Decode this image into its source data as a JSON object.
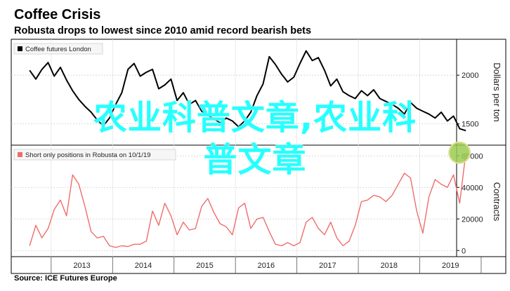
{
  "title": "Coffee Crisis",
  "subtitle": "Robusta drops to lowest since 2010 amid record bearish bets",
  "source": "Source: ICE Futures Europe",
  "overlay_text": {
    "line1": "农业科普文章,农业科",
    "line2": "普文章"
  },
  "colors": {
    "top_series": "#000000",
    "bottom_series": "#f06c6c",
    "overlay": "#27ffff",
    "highlight_fill": "#9acd52",
    "highlight_stroke": "#e0e09a"
  },
  "chart_data": [
    {
      "type": "line",
      "series": [
        {
          "name": "Coffee futures London",
          "x": [
            2012.65,
            2012.75,
            2012.85,
            2012.95,
            2013.05,
            2013.15,
            2013.25,
            2013.35,
            2013.45,
            2013.55,
            2013.65,
            2013.75,
            2013.85,
            2013.95,
            2014.05,
            2014.15,
            2014.25,
            2014.35,
            2014.45,
            2014.55,
            2014.65,
            2014.75,
            2014.85,
            2014.95,
            2015.05,
            2015.15,
            2015.25,
            2015.35,
            2015.45,
            2015.55,
            2015.65,
            2015.75,
            2015.85,
            2015.95,
            2016.05,
            2016.15,
            2016.25,
            2016.35,
            2016.45,
            2016.55,
            2016.65,
            2016.75,
            2016.85,
            2016.95,
            2017.05,
            2017.15,
            2017.25,
            2017.35,
            2017.45,
            2017.55,
            2017.65,
            2017.75,
            2017.85,
            2017.95,
            2018.05,
            2018.15,
            2018.25,
            2018.35,
            2018.45,
            2018.55,
            2018.65,
            2018.75,
            2018.85,
            2018.95,
            2019.05,
            2019.15,
            2019.25,
            2019.35,
            2019.45,
            2019.55,
            2019.65,
            2019.75
          ],
          "values": [
            2050,
            1960,
            2060,
            2130,
            1990,
            2080,
            1950,
            1840,
            1750,
            1680,
            1620,
            1540,
            1480,
            1560,
            1700,
            1820,
            2060,
            2120,
            1990,
            2030,
            2060,
            1860,
            1900,
            1960,
            1740,
            1820,
            1700,
            1740,
            1630,
            1590,
            1550,
            1510,
            1560,
            1530,
            1470,
            1530,
            1620,
            1790,
            1910,
            2190,
            2110,
            2010,
            1930,
            1980,
            2120,
            2250,
            2150,
            2180,
            2050,
            1890,
            1960,
            1830,
            1790,
            1760,
            1840,
            1790,
            1850,
            1760,
            1730,
            1700,
            1660,
            1600,
            1720,
            1660,
            1630,
            1600,
            1560,
            1620,
            1530,
            1580,
            1450,
            1430
          ]
        }
      ],
      "xlim": [
        2012.35,
        2019.6
      ],
      "ylim": [
        1310,
        2340
      ],
      "y_ticks": [
        1500,
        2000
      ],
      "y_tick_labels": [
        "1500",
        "2000"
      ],
      "ylabel": "Dollars per ton",
      "legend": "top-left"
    },
    {
      "type": "line",
      "series": [
        {
          "name": "Short only positions in Robusta on 10/1/19",
          "x": [
            2012.65,
            2012.75,
            2012.85,
            2012.95,
            2013.05,
            2013.15,
            2013.25,
            2013.35,
            2013.45,
            2013.55,
            2013.65,
            2013.75,
            2013.85,
            2013.95,
            2014.05,
            2014.15,
            2014.25,
            2014.35,
            2014.45,
            2014.55,
            2014.65,
            2014.75,
            2014.85,
            2014.95,
            2015.05,
            2015.15,
            2015.25,
            2015.35,
            2015.45,
            2015.55,
            2015.65,
            2015.75,
            2015.85,
            2015.95,
            2016.05,
            2016.15,
            2016.25,
            2016.35,
            2016.45,
            2016.55,
            2016.65,
            2016.75,
            2016.85,
            2016.95,
            2017.05,
            2017.15,
            2017.25,
            2017.35,
            2017.45,
            2017.55,
            2017.65,
            2017.75,
            2017.85,
            2017.95,
            2018.05,
            2018.15,
            2018.25,
            2018.35,
            2018.45,
            2018.55,
            2018.65,
            2018.75,
            2018.85,
            2018.95,
            2019.05,
            2019.15,
            2019.25,
            2019.35,
            2019.45,
            2019.55,
            2019.65,
            2019.75
          ],
          "values": [
            3000,
            16000,
            8000,
            14000,
            26000,
            32000,
            22000,
            48000,
            42000,
            28000,
            12000,
            8000,
            9000,
            3000,
            2000,
            3000,
            2500,
            4000,
            4000,
            6000,
            25000,
            16000,
            30000,
            22000,
            10000,
            18000,
            13000,
            14000,
            28000,
            33000,
            24000,
            17000,
            15000,
            10000,
            27000,
            30000,
            14000,
            20000,
            21000,
            12000,
            4000,
            3000,
            5000,
            3000,
            5000,
            18000,
            21000,
            14000,
            10000,
            18000,
            8000,
            3000,
            6000,
            16000,
            31000,
            32000,
            35000,
            34000,
            31000,
            35000,
            42000,
            49000,
            46000,
            25000,
            11000,
            34000,
            45000,
            42000,
            40000,
            48000,
            30000,
            62000
          ]
        }
      ],
      "xlim": [
        2012.35,
        2019.6
      ],
      "ylim": [
        -3000,
        65000
      ],
      "y_ticks": [
        0,
        20000,
        40000,
        60000
      ],
      "y_tick_labels": [
        "0",
        "20000",
        "40000",
        "60000"
      ],
      "ylabel": "Contracts",
      "legend": "top-left"
    }
  ],
  "x_axis": {
    "tick_labels": [
      "2013",
      "2014",
      "2015",
      "2016",
      "2017",
      "2018",
      "2019"
    ],
    "tick_positions": [
      2013.5,
      2014.5,
      2015.5,
      2016.5,
      2017.5,
      2018.5,
      2019.5
    ]
  }
}
